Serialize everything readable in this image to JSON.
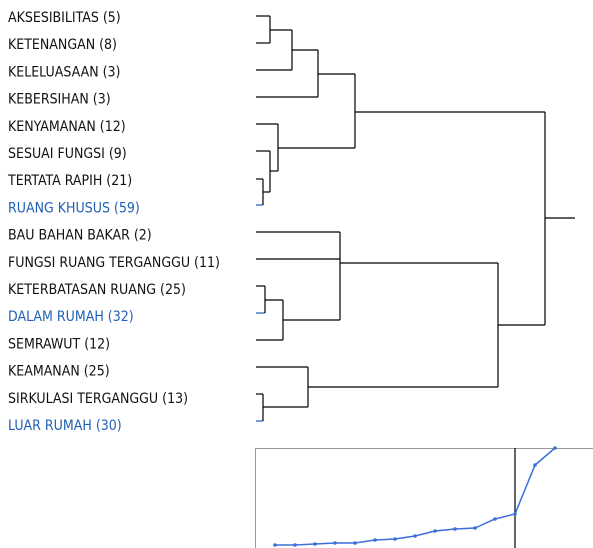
{
  "leaves": [
    {
      "label": "AKSESIBILITAS (5)",
      "highlighted": false
    },
    {
      "label": "KETENANGAN (8)",
      "highlighted": false
    },
    {
      "label": "KELELUASAAN (3)",
      "highlighted": false
    },
    {
      "label": "KEBERSIHAN (3)",
      "highlighted": false
    },
    {
      "label": "KENYAMANAN (12)",
      "highlighted": false
    },
    {
      "label": "SESUAI FUNGSI (9)",
      "highlighted": false
    },
    {
      "label": "TERTATA RAPIH (21)",
      "highlighted": false
    },
    {
      "label": "RUANG KHUSUS (59)",
      "highlighted": true
    },
    {
      "label": "BAU BAHAN BAKAR (2)",
      "highlighted": false
    },
    {
      "label": "FUNGSI RUANG TERGANGGU (11)",
      "highlighted": false
    },
    {
      "label": "KETERBATASAN RUANG (25)",
      "highlighted": false
    },
    {
      "label": "DALAM RUMAH (32)",
      "highlighted": true
    },
    {
      "label": "SEMRAWUT (12)",
      "highlighted": false
    },
    {
      "label": "KEAMANAN (25)",
      "highlighted": false
    },
    {
      "label": "SIRKULASI TERGANGGU (13)",
      "highlighted": false
    },
    {
      "label": "LUAR RUMAH (30)",
      "highlighted": true
    }
  ],
  "highlight_color": "#2160b3",
  "scree": {
    "values": [
      3,
      3,
      4,
      5,
      5,
      8,
      9,
      12,
      17,
      19,
      20,
      29,
      34,
      83,
      100
    ],
    "ylim": [
      0,
      100
    ],
    "cutoff_index": 12,
    "color": "#3b6fd9"
  }
}
